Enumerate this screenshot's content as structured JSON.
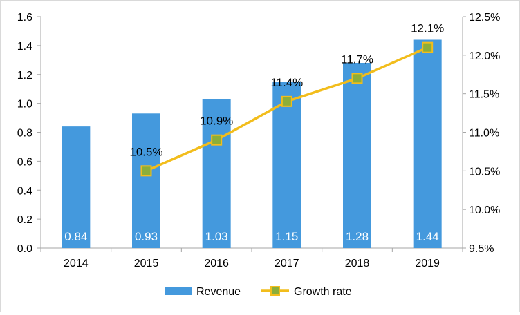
{
  "chart_data": {
    "type": "bar",
    "categories": [
      "2014",
      "2015",
      "2016",
      "2017",
      "2018",
      "2019"
    ],
    "series": [
      {
        "name": "Revenue",
        "type": "bar",
        "axis": "left",
        "values": [
          0.84,
          0.93,
          1.03,
          1.15,
          1.28,
          1.44
        ],
        "labels": [
          "0.84",
          "0.93",
          "1.03",
          "1.15",
          "1.28",
          "1.44"
        ]
      },
      {
        "name": "Growth rate",
        "type": "line",
        "axis": "right",
        "values": [
          null,
          10.5,
          10.9,
          11.4,
          11.7,
          12.1
        ],
        "labels": [
          "",
          "10.5%",
          "10.9%",
          "11.4%",
          "11.7%",
          "12.1%"
        ]
      }
    ],
    "y_left": {
      "ylim": [
        0,
        1.6
      ],
      "ticks": [
        0,
        0.2,
        0.4,
        0.6,
        0.8,
        1.0,
        1.2,
        1.4,
        1.6
      ],
      "tick_labels": [
        "0.0",
        "0.2",
        "0.4",
        "0.6",
        "0.8",
        "1.0",
        "1.2",
        "1.4",
        "1.6"
      ]
    },
    "y_right": {
      "ylim": [
        9.5,
        12.5
      ],
      "ticks": [
        9.5,
        10.0,
        10.5,
        11.0,
        11.5,
        12.0,
        12.5
      ],
      "tick_labels": [
        "9.5%",
        "10.0%",
        "10.5%",
        "11.0%",
        "11.5%",
        "12.0%",
        "12.5%"
      ]
    },
    "grid": false,
    "legend": {
      "position": "bottom",
      "entries": [
        "Revenue",
        "Growth rate"
      ]
    },
    "colors": {
      "bar": "#4499dd",
      "line": "#f2bd1c",
      "marker_fill": "#8cae3a",
      "marker_edge": "#f2bd1c",
      "axis": "#a6a6a6",
      "text": "#000000",
      "bar_label": "#ffffff"
    }
  }
}
